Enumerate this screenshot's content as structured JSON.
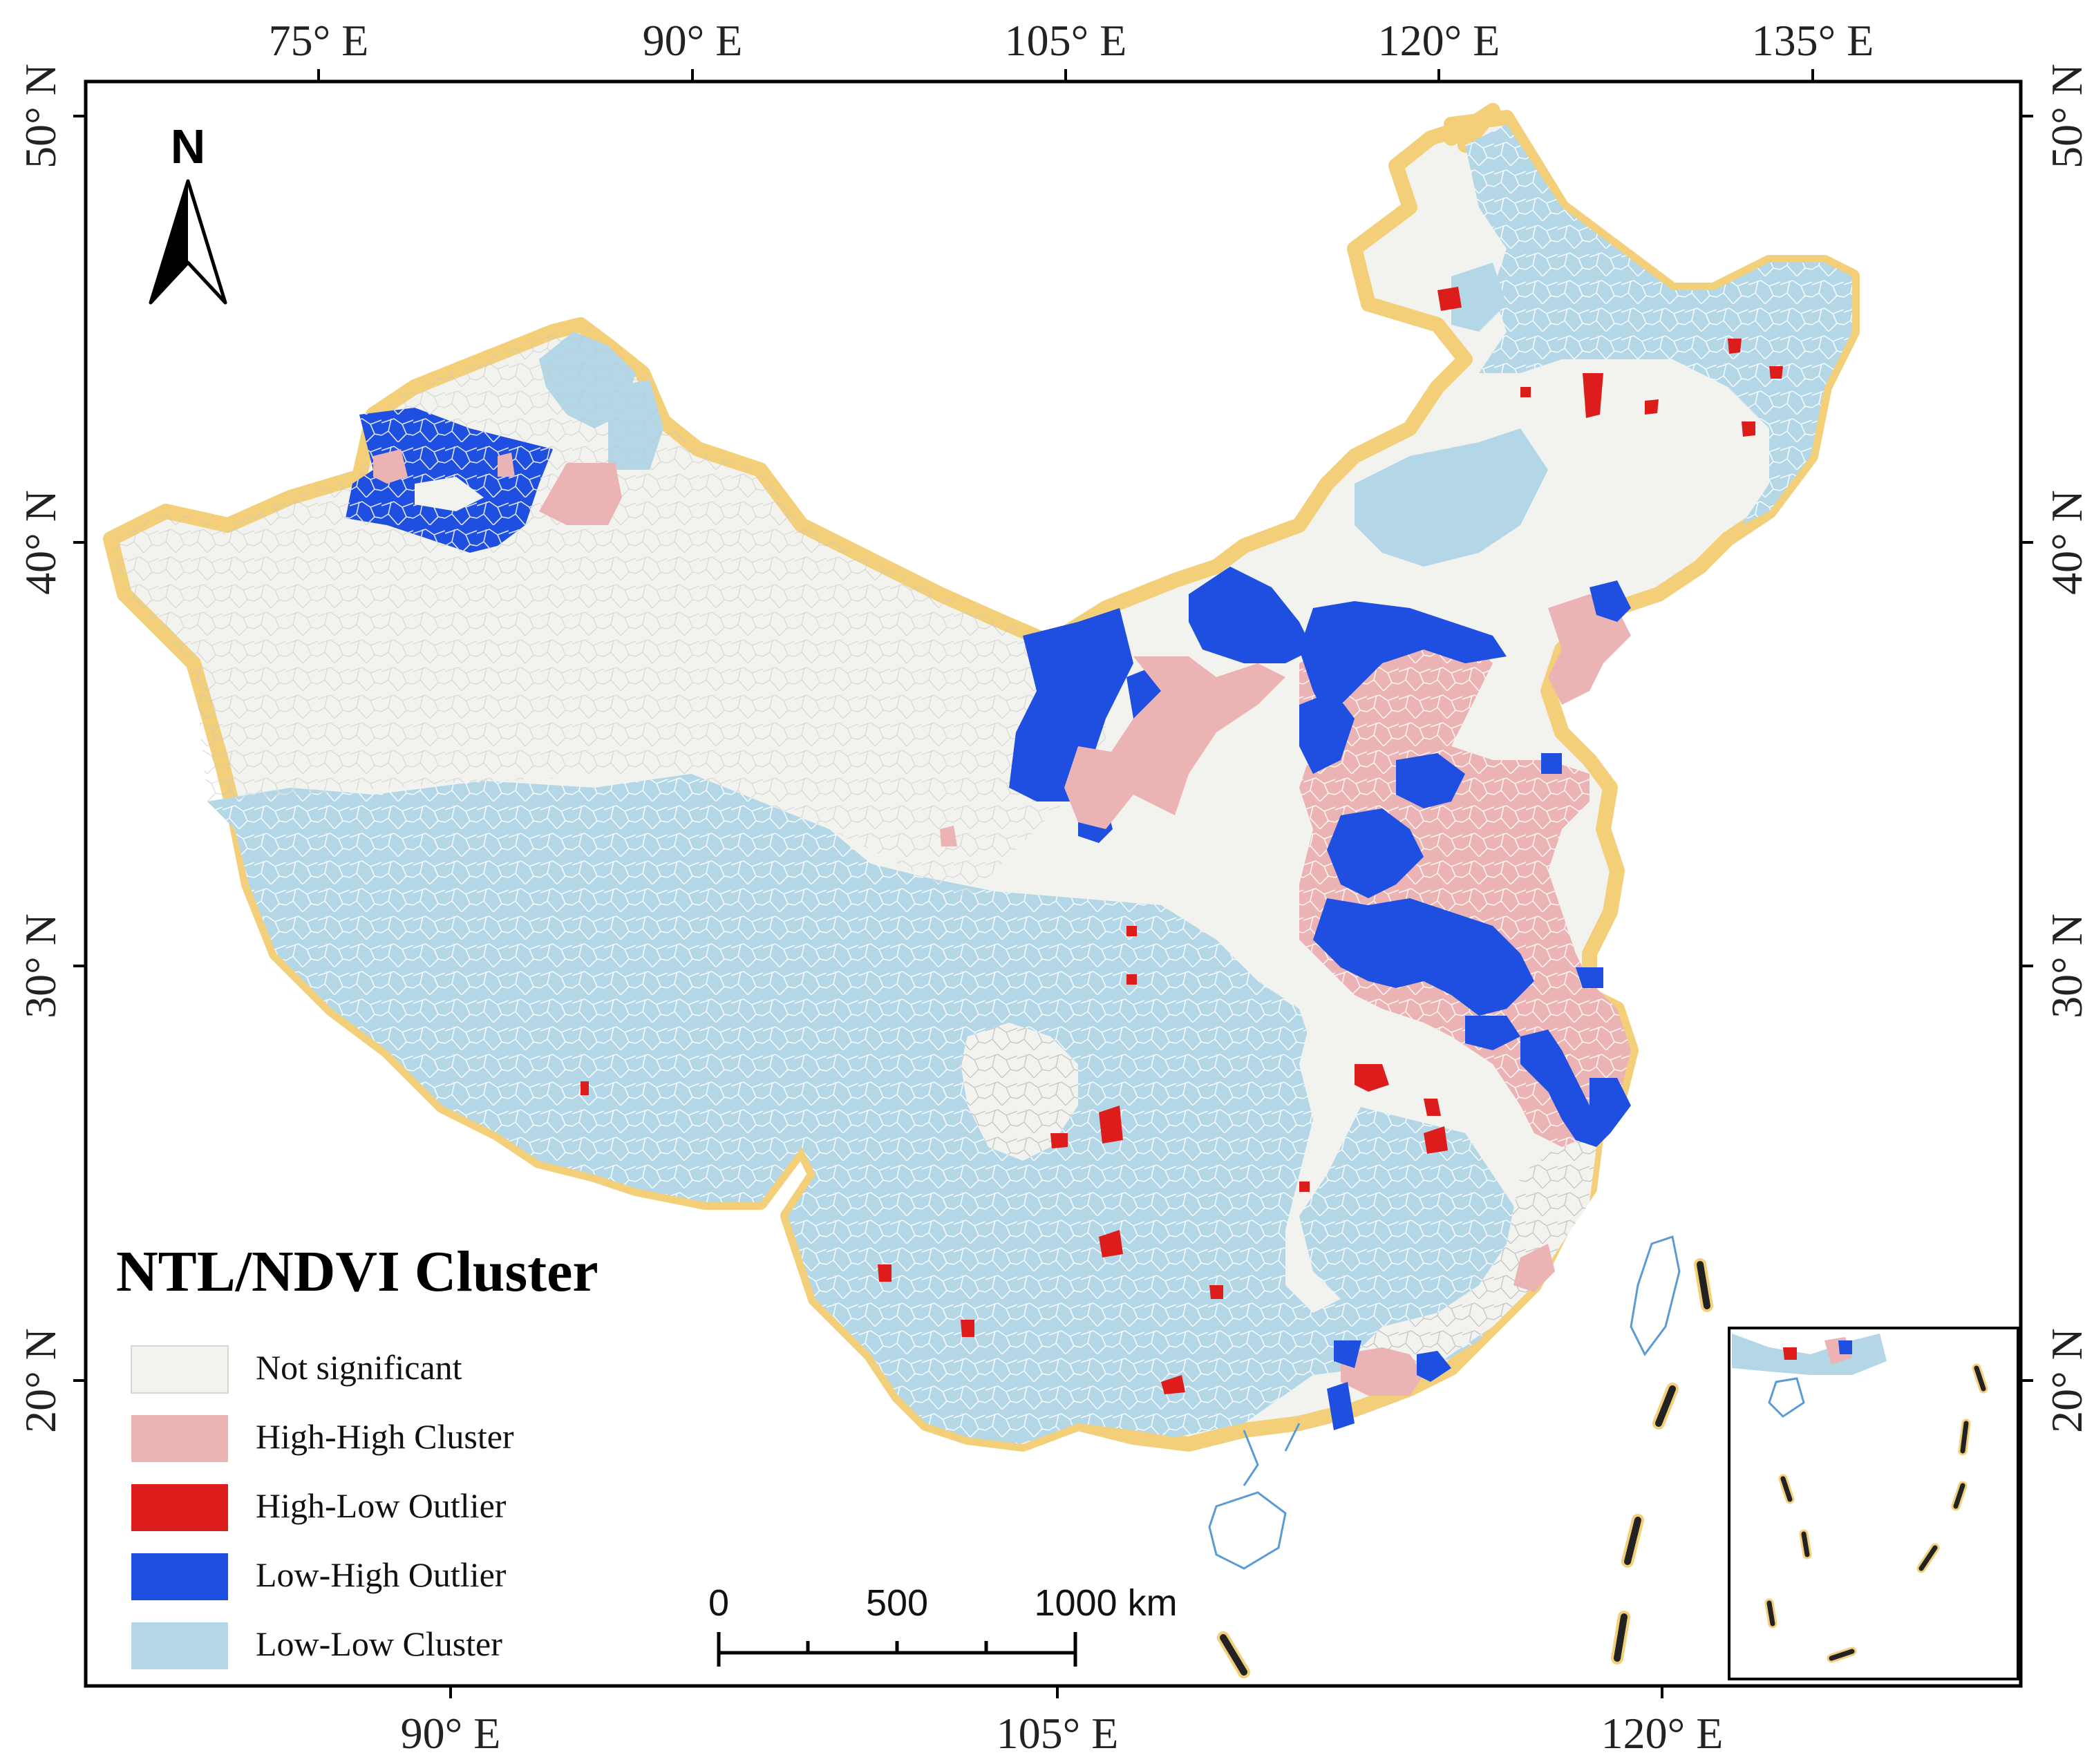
{
  "map": {
    "top_ticks": [
      "75° E",
      "90° E",
      "105° E",
      "120° E",
      "135° E"
    ],
    "bottom_ticks": [
      "90° E",
      "105° E",
      "120° E"
    ],
    "left_ticks": [
      "50° N",
      "40° N",
      "30° N",
      "20° N"
    ],
    "right_ticks": [
      "50° N",
      "40° N",
      "30° N",
      "20° N"
    ],
    "north_label": "N"
  },
  "legend": {
    "title": "NTL/NDVI  Cluster",
    "items": [
      {
        "label": "Not significant",
        "color": "#f2f2ef"
      },
      {
        "label": "High-High Cluster",
        "color": "#ebb3b3"
      },
      {
        "label": "High-Low Outlier",
        "color": "#dd1c1c"
      },
      {
        "label": "Low-High Outlier",
        "color": "#1f4fe0"
      },
      {
        "label": "Low-Low Cluster",
        "color": "#b3d7e6"
      }
    ]
  },
  "scale_bar": {
    "labels": [
      "0",
      "500",
      "1000 km"
    ]
  },
  "colors": {
    "border_glow": "#f3cf7a",
    "district_lines": "#c9c9c9",
    "coast": "#5b9bd5",
    "frame": "#000000"
  }
}
